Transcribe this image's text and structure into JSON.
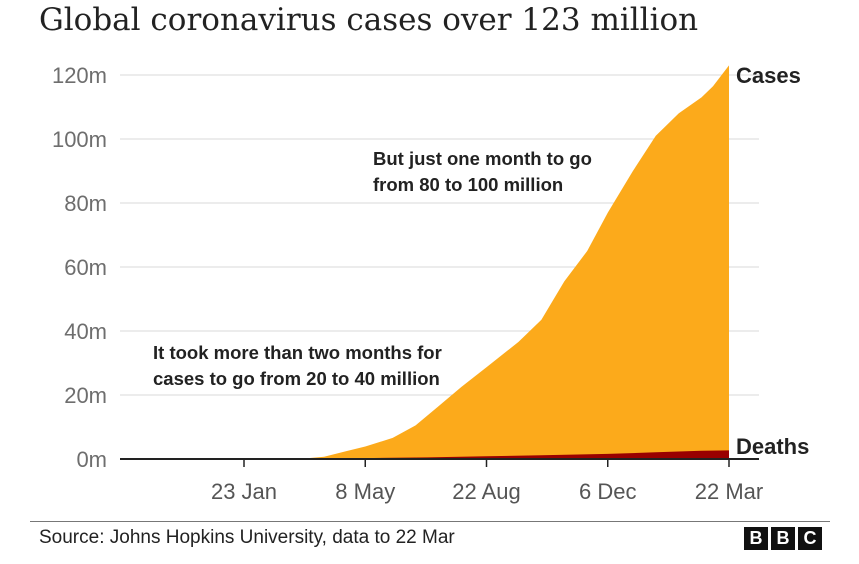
{
  "chart_data": {
    "type": "area",
    "title": "Global coronavirus cases over 123 million",
    "xlabel": "",
    "ylabel": "",
    "ylim": [
      0,
      120
    ],
    "y_unit_suffix": "m",
    "y_ticks": [
      0,
      20,
      40,
      60,
      80,
      100,
      120
    ],
    "y_tick_labels": [
      "0m",
      "20m",
      "40m",
      "60m",
      "80m",
      "100m",
      "120m"
    ],
    "x_tick_labels": [
      "23 Jan",
      "8 May",
      "22 Aug",
      "6 Dec",
      "22 Mar"
    ],
    "x_tick_days": [
      0,
      106,
      212,
      318,
      424
    ],
    "x_range_days": [
      -106,
      424
    ],
    "grid": true,
    "series": [
      {
        "name": "Cases",
        "color": "#fcaa1b",
        "x_days": [
          0,
          50,
          70,
          90,
          106,
          130,
          150,
          170,
          190,
          212,
          240,
          260,
          280,
          300,
          318,
          340,
          360,
          380,
          400,
          410,
          424
        ],
        "values": [
          0,
          0.1,
          0.7,
          2.5,
          3.9,
          6.6,
          10.5,
          16.5,
          22.5,
          28.7,
          36.6,
          43.5,
          55.5,
          65,
          77,
          90,
          101,
          108,
          113,
          116.5,
          123
        ]
      },
      {
        "name": "Deaths",
        "color": "#990000",
        "x_days": [
          0,
          60,
          106,
          160,
          212,
          260,
          318,
          360,
          400,
          424
        ],
        "values": [
          0,
          0.05,
          0.27,
          0.5,
          0.85,
          1.15,
          1.6,
          2.1,
          2.6,
          2.7
        ]
      }
    ],
    "annotations": [
      {
        "lines": [
          "But just one month to go",
          "from 80 to 100 million"
        ]
      },
      {
        "lines": [
          "It took more than two months for",
          "cases to go from 20 to 40 million"
        ]
      }
    ]
  },
  "footer": {
    "source": "Source: Johns Hopkins University, data to 22 Mar",
    "logo_letters": [
      "B",
      "B",
      "C"
    ]
  }
}
